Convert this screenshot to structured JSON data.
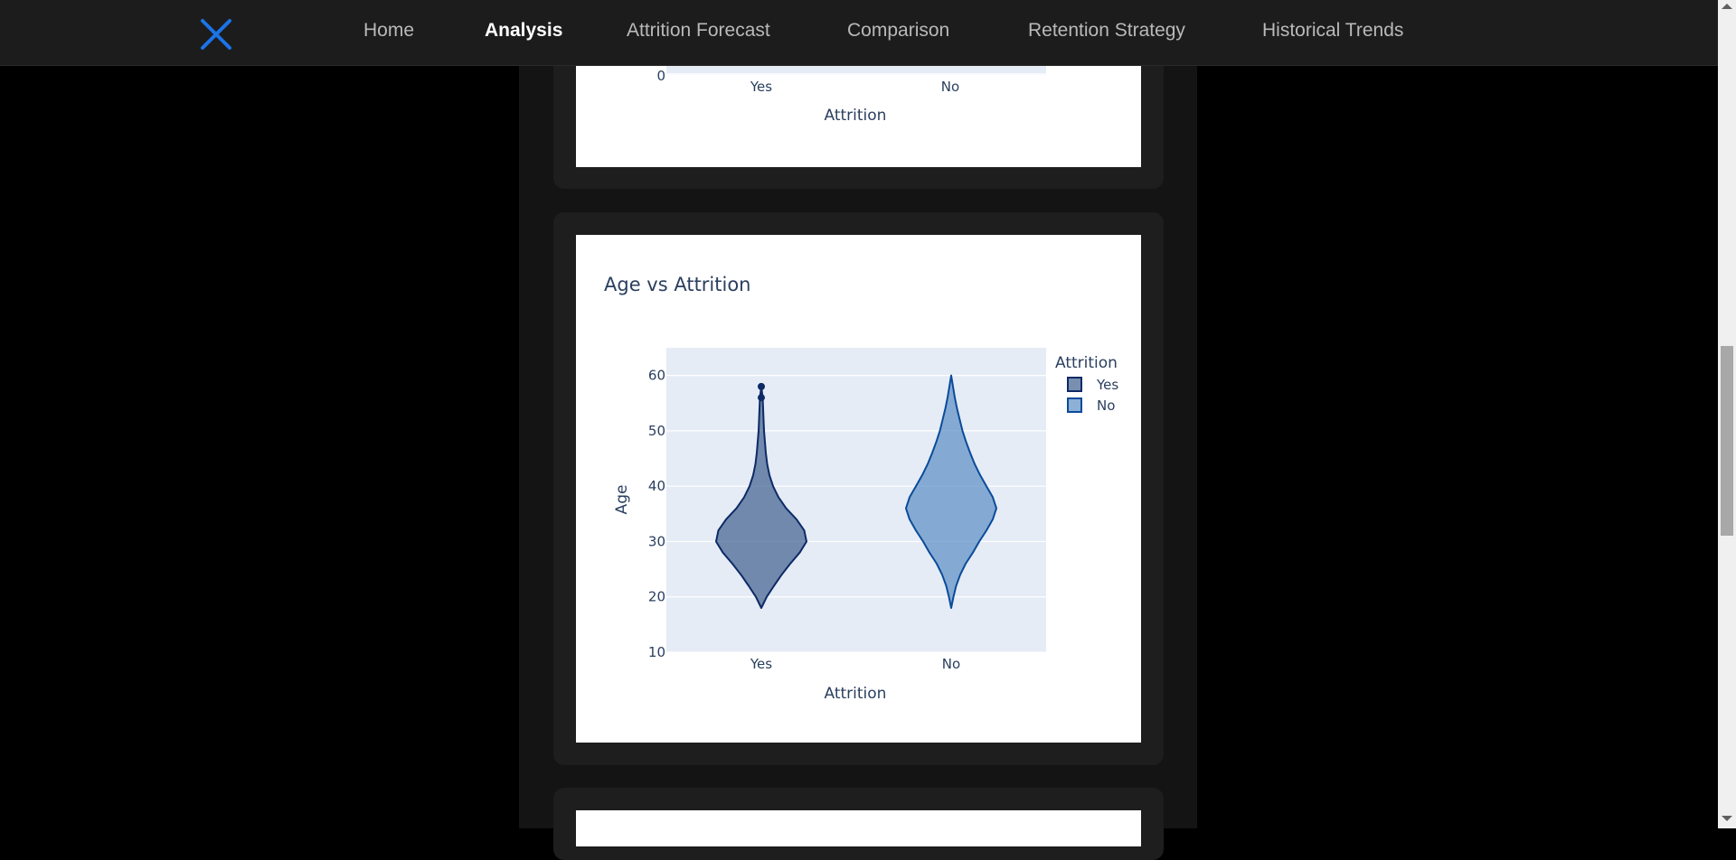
{
  "nav": {
    "items": [
      {
        "label": "Home",
        "active": false
      },
      {
        "label": "Analysis",
        "active": true
      },
      {
        "label": "Attrition Forecast",
        "active": false
      },
      {
        "label": "Comparison",
        "active": false
      },
      {
        "label": "Retention Strategy",
        "active": false
      },
      {
        "label": "Historical Trends",
        "active": false
      }
    ],
    "logo_icon": "close-x-icon",
    "accent_color": "#1a73e8"
  },
  "top_chart": {
    "categories": [
      "Yes",
      "No"
    ],
    "ytick_visible": "0",
    "xlabel": "Attrition"
  },
  "chart_data": {
    "type": "violin",
    "title": "Age vs Attrition",
    "xlabel": "Attrition",
    "ylabel": "Age",
    "categories": [
      "Yes",
      "No"
    ],
    "ylim": [
      10,
      65
    ],
    "yticks": [
      10,
      20,
      30,
      40,
      50,
      60
    ],
    "grid": true,
    "legend": {
      "title": "Attrition",
      "placement": "top-right",
      "entries": [
        "Yes",
        "No"
      ]
    },
    "series": [
      {
        "name": "Yes",
        "color": "#3f5f8f",
        "line_color": "#0d2a66",
        "min": 18,
        "max": 58,
        "profile": [
          [
            18,
            0.0
          ],
          [
            20,
            0.12
          ],
          [
            22,
            0.28
          ],
          [
            24,
            0.45
          ],
          [
            26,
            0.64
          ],
          [
            28,
            0.85
          ],
          [
            30,
            1.0
          ],
          [
            32,
            0.95
          ],
          [
            34,
            0.78
          ],
          [
            36,
            0.55
          ],
          [
            38,
            0.38
          ],
          [
            40,
            0.26
          ],
          [
            42,
            0.18
          ],
          [
            44,
            0.13
          ],
          [
            46,
            0.1
          ],
          [
            48,
            0.08
          ],
          [
            50,
            0.06
          ],
          [
            52,
            0.05
          ],
          [
            54,
            0.04
          ],
          [
            56,
            0.03
          ],
          [
            58,
            0.0
          ]
        ],
        "outliers": [
          58,
          56
        ]
      },
      {
        "name": "No",
        "color": "#5b8fc4",
        "line_color": "#0b4b9a",
        "min": 18,
        "max": 60,
        "profile": [
          [
            18,
            0.0
          ],
          [
            20,
            0.05
          ],
          [
            22,
            0.11
          ],
          [
            24,
            0.2
          ],
          [
            26,
            0.32
          ],
          [
            28,
            0.48
          ],
          [
            30,
            0.62
          ],
          [
            32,
            0.78
          ],
          [
            34,
            0.92
          ],
          [
            36,
            1.0
          ],
          [
            38,
            0.92
          ],
          [
            40,
            0.78
          ],
          [
            42,
            0.64
          ],
          [
            44,
            0.52
          ],
          [
            46,
            0.42
          ],
          [
            48,
            0.33
          ],
          [
            50,
            0.25
          ],
          [
            52,
            0.19
          ],
          [
            54,
            0.13
          ],
          [
            56,
            0.08
          ],
          [
            58,
            0.04
          ],
          [
            60,
            0.0
          ]
        ],
        "outliers": []
      }
    ]
  }
}
